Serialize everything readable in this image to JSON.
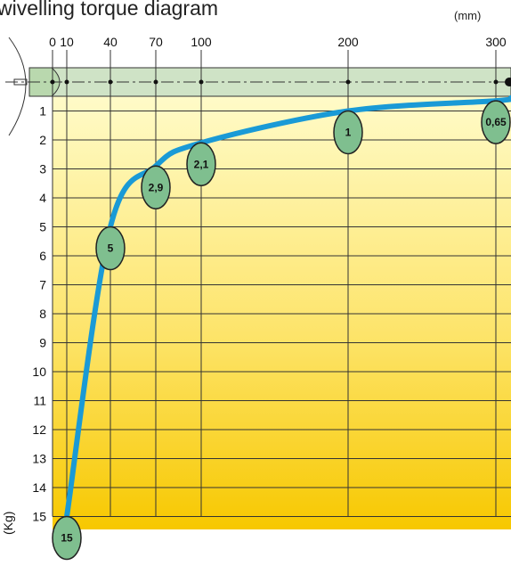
{
  "chart_data": {
    "type": "line",
    "title": "wivelling torque diagram",
    "xlabel": "(mm)",
    "ylabel": "(Kg)",
    "x_ticks": [
      "0",
      "10",
      "40",
      "70",
      "100",
      "200",
      "300"
    ],
    "y_ticks": [
      "1",
      "2",
      "3",
      "4",
      "5",
      "6",
      "7",
      "8",
      "9",
      "10",
      "11",
      "12",
      "13",
      "14",
      "15"
    ],
    "xlim": [
      0,
      300
    ],
    "ylim": [
      0,
      15
    ],
    "series": [
      {
        "points": [
          {
            "x": 10,
            "y": 15,
            "label": "15"
          },
          {
            "x": 40,
            "y": 5,
            "label": "5"
          },
          {
            "x": 70,
            "y": 2.9,
            "label": "2,9"
          },
          {
            "x": 100,
            "y": 2.1,
            "label": "2,1"
          },
          {
            "x": 200,
            "y": 1,
            "label": "1"
          },
          {
            "x": 300,
            "y": 0.65,
            "label": "0,65"
          }
        ]
      }
    ],
    "grid": true,
    "colors": {
      "curve": "#1a9ad6",
      "bubble_fill": "#7fbf8f",
      "bar_fill": "#cfe3c6",
      "gradient_top": "#fff8b0",
      "gradient_bottom": "#f6c400"
    }
  }
}
